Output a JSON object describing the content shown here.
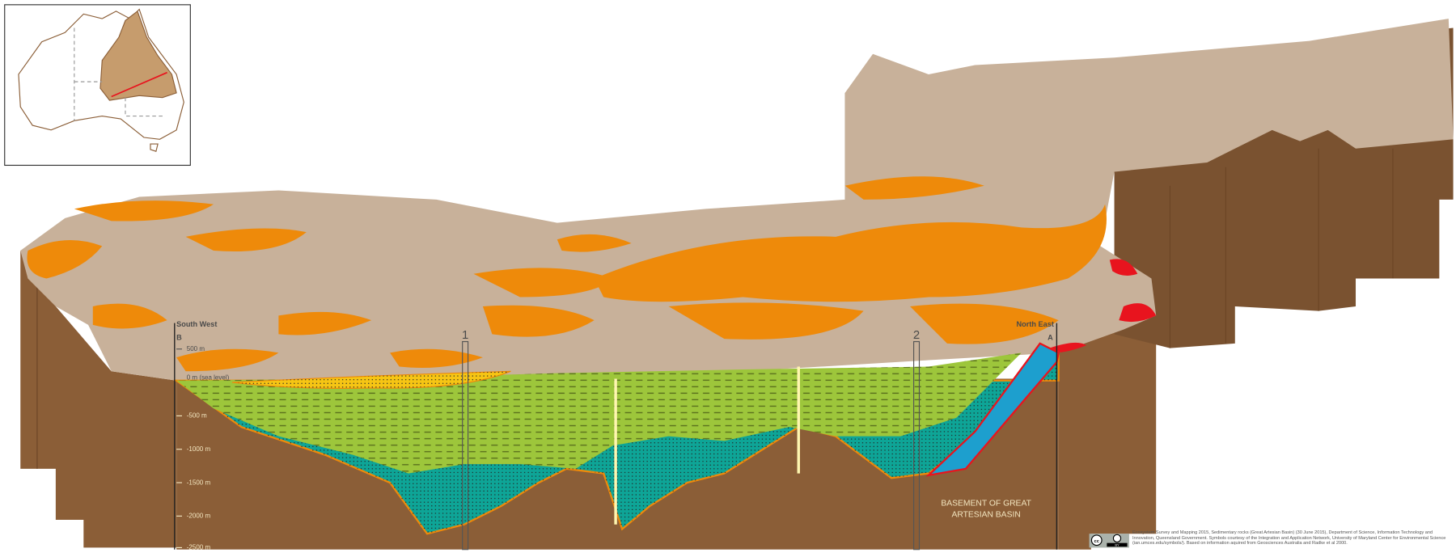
{
  "diagram": {
    "left_label": "South West",
    "left_marker": "B",
    "right_label": "North East",
    "right_marker": "A",
    "depth_ticks": [
      "500 m",
      "0 m (sea level)",
      "-500 m",
      "-1000 m",
      "-1500 m",
      "-2000 m",
      "-2500 m"
    ],
    "wells": [
      "1",
      "2"
    ],
    "basement_label_line1": "BASEMENT OF GREAT",
    "basement_label_line2": "ARTESIAN BASIN"
  },
  "colors": {
    "surface": "#c8b19a",
    "outcrop": "#ee8a0a",
    "side": "#8b5e37",
    "green_layer": "#9dc63b",
    "teal_layer": "#0ea597",
    "blue_layer": "#1d9fce",
    "yellow_layer": "#f6c514",
    "red": "#e8141e"
  },
  "license": {
    "cc": "cc",
    "by": "BY"
  },
  "credit": "Ecosystem Survey and Mapping 2015, Sedimentary rocks (Great Artesian Basin) (30 June 2015), Department of Science, Information Technology and Innovation, Queensland Government. Symbols courtesy of the Integration and Application Network, University of Maryland Center for Environmental Science (ian.umces.edu/symbols/). Based on information aquired from Geosciences Australia and Radke et al 2000."
}
